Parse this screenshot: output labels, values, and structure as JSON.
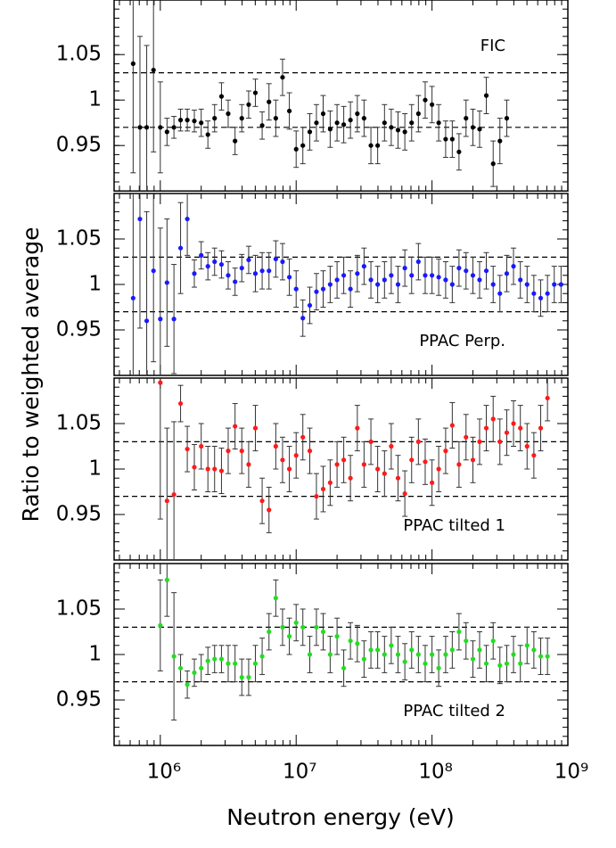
{
  "shared": {
    "xlabel": "Neutron energy (eV)",
    "ylabel": "Ratio to weighted average"
  },
  "chart_data": [
    {
      "type": "scatter",
      "xscale": "log",
      "xlim": [
        457000,
        1000000000
      ],
      "ylim": [
        0.9,
        1.11
      ],
      "xticks": [
        {
          "value": 1000000,
          "label": "10⁶"
        },
        {
          "value": 10000000,
          "label": "10⁷"
        },
        {
          "value": 100000000,
          "label": "10⁸"
        },
        {
          "value": 1000000000,
          "label": "10⁹"
        }
      ],
      "yticks": [
        0.95,
        1,
        1.05
      ],
      "hlines": [
        0.97,
        1.03
      ],
      "legend": "upper right",
      "x": [
        631000,
        708000,
        794000,
        891000,
        1000000,
        1120000,
        1260000,
        1410000,
        1580000,
        1780000,
        2000000,
        2240000,
        2510000,
        2820000,
        3160000,
        3550000,
        3980000,
        4470000,
        5010000,
        5620000,
        6310000,
        7080000,
        7940000,
        8910000,
        10000000,
        11200000,
        12600000,
        14100000,
        15800000,
        17800000,
        20000000,
        22400000,
        25100000,
        28200000,
        31600000,
        35500000,
        39800000,
        44700000,
        50100000,
        56200000,
        63100000,
        70800000,
        79400000,
        89100000,
        100000000,
        112000000,
        126000000,
        141000000,
        158000000,
        178000000,
        200000000,
        224000000,
        251000000,
        282000000,
        316000000,
        355000000
      ],
      "series": [
        {
          "name": "FIC",
          "color": "#000000",
          "values": [
            1.04,
            0.97,
            0.97,
            1.033,
            0.97,
            0.965,
            0.97,
            0.978,
            0.978,
            0.977,
            0.975,
            0.962,
            0.98,
            1.004,
            0.985,
            0.955,
            0.98,
            0.995,
            1.008,
            0.972,
            0.998,
            0.98,
            1.025,
            0.988,
            0.946,
            0.95,
            0.965,
            0.975,
            0.985,
            0.968,
            0.975,
            0.973,
            0.978,
            0.985,
            0.98,
            0.95,
            0.95,
            0.975,
            0.97,
            0.967,
            0.965,
            0.975,
            0.985,
            1.0,
            0.995,
            0.975,
            0.957,
            0.957,
            0.943,
            0.98,
            0.97,
            0.968,
            1.005,
            0.93,
            0.955,
            0.98
          ],
          "errors": [
            0.12,
            0.1,
            0.09,
            0.09,
            0.05,
            0.015,
            0.012,
            0.012,
            0.012,
            0.012,
            0.015,
            0.015,
            0.015,
            0.015,
            0.015,
            0.015,
            0.015,
            0.015,
            0.015,
            0.015,
            0.02,
            0.02,
            0.02,
            0.02,
            0.02,
            0.02,
            0.02,
            0.02,
            0.02,
            0.02,
            0.02,
            0.02,
            0.02,
            0.02,
            0.02,
            0.02,
            0.02,
            0.02,
            0.02,
            0.02,
            0.02,
            0.02,
            0.02,
            0.02,
            0.02,
            0.02,
            0.02,
            0.02,
            0.02,
            0.02,
            0.02,
            0.02,
            0.02,
            0.025,
            0.025,
            0.02
          ]
        }
      ]
    },
    {
      "type": "scatter",
      "xscale": "log",
      "xlim": [
        457000,
        1000000000
      ],
      "ylim": [
        0.9,
        1.1
      ],
      "xticks": [
        {
          "value": 1000000,
          "label": "10⁶"
        },
        {
          "value": 10000000,
          "label": "10⁷"
        },
        {
          "value": 100000000,
          "label": "10⁸"
        },
        {
          "value": 1000000000,
          "label": "10⁹"
        }
      ],
      "yticks": [
        0.95,
        1,
        1.05
      ],
      "hlines": [
        0.97,
        1.03
      ],
      "legend": "lower right",
      "x": [
        631000,
        708000,
        794000,
        891000,
        1000000,
        1120000,
        1260000,
        1410000,
        1580000,
        1780000,
        2000000,
        2240000,
        2510000,
        2820000,
        3160000,
        3550000,
        3980000,
        4470000,
        5010000,
        5620000,
        6310000,
        7080000,
        7940000,
        8910000,
        10000000,
        11200000,
        12600000,
        14100000,
        15800000,
        17800000,
        20000000,
        22400000,
        25100000,
        28200000,
        31600000,
        35500000,
        39800000,
        44700000,
        50100000,
        56200000,
        63100000,
        70800000,
        79400000,
        89100000,
        100000000,
        112000000,
        126000000,
        141000000,
        158000000,
        178000000,
        200000000,
        224000000,
        251000000,
        282000000,
        316000000,
        355000000,
        398000000,
        447000000,
        501000000,
        562000000,
        631000000,
        708000000,
        794000000,
        891000000
      ],
      "series": [
        {
          "name": "PPAC Perp.",
          "color": "#1a1aff",
          "values": [
            0.985,
            1.072,
            0.96,
            1.015,
            0.962,
            1.002,
            0.962,
            1.04,
            1.072,
            1.012,
            1.032,
            1.02,
            1.025,
            1.022,
            1.01,
            1.003,
            1.018,
            1.027,
            1.012,
            1.015,
            1.015,
            1.028,
            1.025,
            1.008,
            0.995,
            0.963,
            0.977,
            0.992,
            0.995,
            1.0,
            1.005,
            1.01,
            0.995,
            1.012,
            1.02,
            1.005,
            1.0,
            1.005,
            1.01,
            1.0,
            1.018,
            1.01,
            1.025,
            1.01,
            1.01,
            1.008,
            1.005,
            1.0,
            1.018,
            1.015,
            1.01,
            1.005,
            1.015,
            1.0,
            0.99,
            1.012,
            1.02,
            1.005,
            1.0,
            0.99,
            0.985,
            0.99,
            1.0,
            1.0
          ],
          "errors": [
            0.15,
            0.12,
            0.12,
            0.1,
            0.1,
            0.07,
            0.06,
            0.05,
            0.04,
            0.015,
            0.015,
            0.015,
            0.015,
            0.015,
            0.015,
            0.015,
            0.015,
            0.015,
            0.02,
            0.02,
            0.02,
            0.02,
            0.02,
            0.02,
            0.02,
            0.02,
            0.02,
            0.02,
            0.02,
            0.02,
            0.02,
            0.02,
            0.02,
            0.02,
            0.02,
            0.02,
            0.02,
            0.02,
            0.02,
            0.02,
            0.02,
            0.02,
            0.02,
            0.02,
            0.02,
            0.02,
            0.02,
            0.02,
            0.02,
            0.02,
            0.02,
            0.02,
            0.02,
            0.02,
            0.02,
            0.02,
            0.02,
            0.02,
            0.02,
            0.02,
            0.02,
            0.02,
            0.02,
            0.02
          ]
        }
      ]
    },
    {
      "type": "scatter",
      "xscale": "log",
      "xlim": [
        457000,
        1000000000
      ],
      "ylim": [
        0.9,
        1.1
      ],
      "xticks": [
        {
          "value": 1000000,
          "label": "10⁶"
        },
        {
          "value": 10000000,
          "label": "10⁷"
        },
        {
          "value": 100000000,
          "label": "10⁸"
        },
        {
          "value": 1000000000,
          "label": "10⁹"
        }
      ],
      "yticks": [
        0.95,
        1,
        1.05
      ],
      "hlines": [
        0.97,
        1.03
      ],
      "legend": "lower right",
      "x": [
        1000000,
        1120000,
        1260000,
        1410000,
        1580000,
        1780000,
        2000000,
        2240000,
        2510000,
        2820000,
        3160000,
        3550000,
        3980000,
        4470000,
        5010000,
        5620000,
        6310000,
        7080000,
        7940000,
        8910000,
        10000000,
        11200000,
        12600000,
        14100000,
        15800000,
        17800000,
        20000000,
        22400000,
        25100000,
        28200000,
        31600000,
        35500000,
        39800000,
        44700000,
        50100000,
        56200000,
        63100000,
        70800000,
        79400000,
        89100000,
        100000000,
        112000000,
        126000000,
        141000000,
        158000000,
        178000000,
        200000000,
        224000000,
        251000000,
        282000000,
        316000000,
        355000000,
        398000000,
        447000000,
        501000000,
        562000000,
        631000000,
        708000000
      ],
      "series": [
        {
          "name": "PPAC tilted 1",
          "color": "#ff1a1a",
          "values": [
            1.095,
            0.965,
            0.972,
            1.072,
            1.022,
            1.002,
            1.025,
            1.0,
            1.0,
            0.998,
            1.02,
            1.047,
            1.02,
            1.005,
            1.045,
            0.965,
            0.955,
            1.025,
            1.01,
            1.0,
            1.015,
            1.035,
            1.02,
            0.97,
            0.978,
            0.985,
            1.005,
            1.01,
            0.99,
            1.045,
            1.005,
            1.03,
            1.0,
            0.995,
            1.025,
            0.99,
            0.973,
            1.01,
            1.03,
            1.008,
            0.985,
            1.0,
            1.02,
            1.048,
            1.005,
            1.035,
            1.01,
            1.03,
            1.045,
            1.055,
            1.03,
            1.04,
            1.05,
            1.045,
            1.025,
            1.015,
            1.045,
            1.078
          ],
          "errors": [
            0.15,
            0.08,
            0.08,
            0.02,
            0.025,
            0.025,
            0.025,
            0.025,
            0.025,
            0.025,
            0.025,
            0.025,
            0.025,
            0.025,
            0.025,
            0.025,
            0.025,
            0.025,
            0.025,
            0.025,
            0.025,
            0.025,
            0.025,
            0.025,
            0.025,
            0.025,
            0.025,
            0.025,
            0.025,
            0.025,
            0.025,
            0.025,
            0.025,
            0.025,
            0.025,
            0.025,
            0.025,
            0.025,
            0.025,
            0.025,
            0.025,
            0.025,
            0.025,
            0.025,
            0.025,
            0.025,
            0.025,
            0.025,
            0.025,
            0.025,
            0.025,
            0.025,
            0.025,
            0.025,
            0.025,
            0.025,
            0.025,
            0.025
          ]
        }
      ]
    },
    {
      "type": "scatter",
      "xscale": "log",
      "xlim": [
        457000,
        1000000000
      ],
      "ylim": [
        0.9,
        1.1
      ],
      "xticks": [
        {
          "value": 1000000,
          "label": "10⁶"
        },
        {
          "value": 10000000,
          "label": "10⁷"
        },
        {
          "value": 100000000,
          "label": "10⁸"
        },
        {
          "value": 1000000000,
          "label": "10⁹"
        }
      ],
      "yticks": [
        0.95,
        1,
        1.05
      ],
      "hlines": [
        0.97,
        1.03
      ],
      "legend": "lower right",
      "x": [
        1000000,
        1120000,
        1260000,
        1410000,
        1580000,
        1780000,
        2000000,
        2240000,
        2510000,
        2820000,
        3160000,
        3550000,
        3980000,
        4470000,
        5010000,
        5620000,
        6310000,
        7080000,
        7940000,
        8910000,
        10000000,
        11200000,
        12600000,
        14100000,
        15800000,
        17800000,
        20000000,
        22400000,
        25100000,
        28200000,
        31600000,
        35500000,
        39800000,
        44700000,
        50100000,
        56200000,
        63100000,
        70800000,
        79400000,
        89100000,
        100000000,
        112000000,
        126000000,
        141000000,
        158000000,
        178000000,
        200000000,
        224000000,
        251000000,
        282000000,
        316000000,
        355000000,
        398000000,
        447000000,
        501000000,
        562000000,
        631000000,
        708000000
      ],
      "series": [
        {
          "name": "PPAC tilted 2",
          "color": "#22dd22",
          "values": [
            1.032,
            1.082,
            0.998,
            0.985,
            0.967,
            0.98,
            0.985,
            0.993,
            0.995,
            0.995,
            0.99,
            0.99,
            0.975,
            0.975,
            0.99,
            0.998,
            1.025,
            1.062,
            1.03,
            1.02,
            1.035,
            1.03,
            1.0,
            1.03,
            1.025,
            1.0,
            1.02,
            0.985,
            1.015,
            1.012,
            0.995,
            1.005,
            1.005,
            1.0,
            1.01,
            1.0,
            0.992,
            1.005,
            1.0,
            0.99,
            1.0,
            0.985,
            1.0,
            1.005,
            1.025,
            1.015,
            0.995,
            1.005,
            0.99,
            1.015,
            0.988,
            0.99,
            1.0,
            0.99,
            1.01,
            1.005,
            0.998,
            0.998
          ],
          "errors": [
            0.05,
            0.04,
            0.07,
            0.015,
            0.015,
            0.015,
            0.015,
            0.015,
            0.015,
            0.015,
            0.02,
            0.02,
            0.02,
            0.02,
            0.02,
            0.02,
            0.02,
            0.02,
            0.02,
            0.02,
            0.02,
            0.02,
            0.02,
            0.02,
            0.02,
            0.02,
            0.02,
            0.02,
            0.02,
            0.02,
            0.02,
            0.02,
            0.02,
            0.02,
            0.02,
            0.02,
            0.02,
            0.02,
            0.02,
            0.02,
            0.02,
            0.02,
            0.02,
            0.02,
            0.02,
            0.02,
            0.02,
            0.02,
            0.02,
            0.02,
            0.02,
            0.02,
            0.02,
            0.02,
            0.02,
            0.02,
            0.02,
            0.02
          ]
        }
      ]
    }
  ]
}
